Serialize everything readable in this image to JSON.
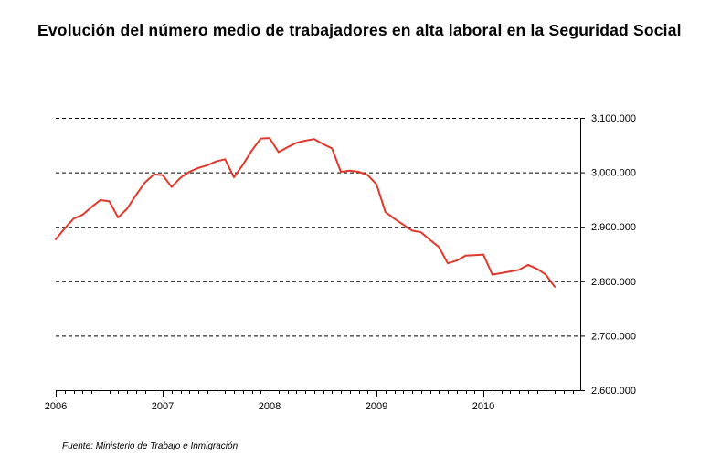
{
  "title": "Evolución del número medio de trabajadores en alta laboral en la Seguridad Social",
  "source": "Fuente: Ministerio de Trabajo e Inmigración",
  "chart_data": {
    "type": "line",
    "title": "Evolución del número medio de trabajadores en alta laboral en la Seguridad Social",
    "xlabel": "",
    "ylabel": "",
    "ylim": [
      2600000,
      3100000
    ],
    "y_ticks": [
      3100000,
      3000000,
      2900000,
      2800000,
      2700000,
      2600000
    ],
    "y_tick_labels": [
      "3.100.000",
      "3.000.000",
      "2.900.000",
      "2.800.000",
      "2.700.000",
      "2.600.000"
    ],
    "x_ticks": [
      2006,
      2007,
      2008,
      2009,
      2010
    ],
    "x_tick_labels": [
      "2006",
      "2007",
      "2008",
      "2009",
      "2010"
    ],
    "grid": "horizontal dashed",
    "legend": "none",
    "line_color": "#e0382b",
    "x": [
      "2006-01",
      "2006-02",
      "2006-03",
      "2006-04",
      "2006-05",
      "2006-06",
      "2006-07",
      "2006-08",
      "2006-09",
      "2006-10",
      "2006-11",
      "2006-12",
      "2007-01",
      "2007-02",
      "2007-03",
      "2007-04",
      "2007-05",
      "2007-06",
      "2007-07",
      "2007-08",
      "2007-09",
      "2007-10",
      "2007-11",
      "2007-12",
      "2008-01",
      "2008-02",
      "2008-03",
      "2008-04",
      "2008-05",
      "2008-06",
      "2008-07",
      "2008-08",
      "2008-09",
      "2008-10",
      "2008-11",
      "2008-12",
      "2009-01",
      "2009-02",
      "2009-03",
      "2009-04",
      "2009-05",
      "2009-06",
      "2009-07",
      "2009-08",
      "2009-09",
      "2009-10",
      "2009-11",
      "2009-12",
      "2010-01",
      "2010-02",
      "2010-03",
      "2010-04",
      "2010-05",
      "2010-06",
      "2010-07",
      "2010-08",
      "2010-09"
    ],
    "values": [
      2877000,
      2897000,
      2915000,
      2922000,
      2936000,
      2949000,
      2947000,
      2917000,
      2933000,
      2958000,
      2981000,
      2996000,
      2995000,
      2973000,
      2990000,
      3001000,
      3008000,
      3013000,
      3020000,
      3024000,
      2991000,
      3014000,
      3040000,
      3062000,
      3063000,
      3037000,
      3046000,
      3054000,
      3058000,
      3061000,
      3052000,
      3044000,
      3001000,
      3003000,
      3001000,
      2995000,
      2978000,
      2927000,
      2915000,
      2904000,
      2893000,
      2890000,
      2876000,
      2863000,
      2833000,
      2838000,
      2847000,
      2848000,
      2849000,
      2812000,
      2815000,
      2818000,
      2821000,
      2830000,
      2823000,
      2812000,
      2790000
    ]
  }
}
